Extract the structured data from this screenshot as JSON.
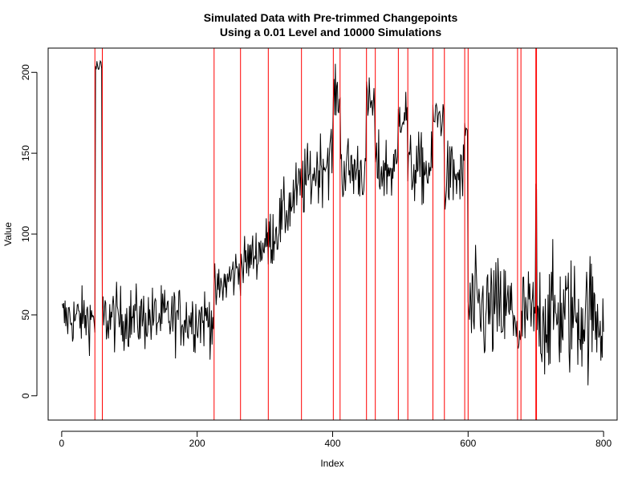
{
  "chart_data": {
    "type": "line",
    "title": "Simulated Data with Pre-trimmed Changepoints",
    "subtitle": "Using a 0.01 Level and 10000 Simulations",
    "xlabel": "Index",
    "ylabel": "Value",
    "xlim": [
      -20,
      820
    ],
    "ylim": [
      -15,
      215
    ],
    "x_ticks": [
      0,
      200,
      400,
      600,
      800
    ],
    "y_ticks": [
      0,
      50,
      100,
      150,
      200
    ],
    "series": [
      {
        "color": "#000000",
        "segments": [
          {
            "start": 1,
            "end": 49,
            "base": 48,
            "noise": 9
          },
          {
            "start": 50,
            "end": 59,
            "base": 203,
            "noise": 3
          },
          {
            "start": 60,
            "end": 224,
            "base": 48,
            "noise": 10
          },
          {
            "start": 225,
            "end": 264,
            "base": 62,
            "to": 80,
            "noise": 8
          },
          {
            "start": 265,
            "end": 304,
            "base": 80,
            "to": 95,
            "noise": 8
          },
          {
            "start": 305,
            "end": 354,
            "base": 95,
            "to": 130,
            "noise": 10
          },
          {
            "start": 355,
            "end": 400,
            "base": 130,
            "to": 150,
            "noise": 11
          },
          {
            "start": 401,
            "end": 411,
            "base": 185,
            "noise": 8
          },
          {
            "start": 412,
            "end": 449,
            "base": 140,
            "noise": 11
          },
          {
            "start": 450,
            "end": 462,
            "base": 180,
            "noise": 8
          },
          {
            "start": 463,
            "end": 496,
            "base": 140,
            "noise": 11
          },
          {
            "start": 497,
            "end": 510,
            "base": 175,
            "noise": 8
          },
          {
            "start": 511,
            "end": 547,
            "base": 140,
            "noise": 11
          },
          {
            "start": 548,
            "end": 564,
            "base": 172,
            "noise": 8
          },
          {
            "start": 565,
            "end": 594,
            "base": 135,
            "noise": 11
          },
          {
            "start": 595,
            "end": 599,
            "base": 165,
            "noise": 8
          },
          {
            "start": 600,
            "end": 672,
            "base": 52,
            "noise": 17
          },
          {
            "start": 673,
            "end": 678,
            "base": 30,
            "noise": 8
          },
          {
            "start": 679,
            "end": 699,
            "base": 50,
            "noise": 15
          },
          {
            "start": 700,
            "end": 701,
            "base": 125,
            "noise": 4
          },
          {
            "start": 702,
            "end": 800,
            "base": 50,
            "noise": 19
          }
        ]
      }
    ],
    "changepoints": [
      49,
      60,
      225,
      264,
      305,
      354,
      401,
      411,
      450,
      463,
      497,
      511,
      548,
      565,
      595,
      600,
      673,
      678,
      700,
      701
    ],
    "changepoint_color": "#ff0000"
  }
}
